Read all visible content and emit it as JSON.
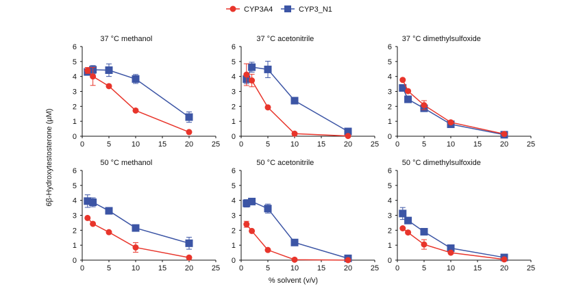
{
  "chart_data": {
    "type": "line",
    "layout": "2x3 small multiples",
    "shared_xlabel": "% solvent (v/v)",
    "shared_ylabel": "6β-Hydroxytestosterone (µM)",
    "legend": {
      "placement": "top-center",
      "entries": [
        {
          "name": "CYP3A4",
          "marker": "circle",
          "color": "#e8352b"
        },
        {
          "name": "CYP3_N1",
          "marker": "square",
          "color": "#3c55a5"
        }
      ]
    },
    "xlim": [
      0,
      25
    ],
    "ylim": [
      0,
      6
    ],
    "xticks": [
      0,
      5,
      10,
      15,
      20,
      25
    ],
    "yticks": [
      0,
      1,
      2,
      3,
      4,
      5,
      6
    ],
    "x": [
      1,
      2,
      5,
      10,
      20
    ],
    "panels": [
      {
        "title": "37 °C methanol",
        "series": [
          {
            "name": "CYP3A4",
            "values": [
              4.4,
              4.0,
              3.35,
              1.72,
              0.28
            ],
            "errors": [
              0.2,
              0.6,
              0.05,
              0.05,
              0.05
            ]
          },
          {
            "name": "CYP3_N1",
            "values": [
              4.3,
              4.45,
              4.42,
              3.83,
              1.28
            ],
            "errors": [
              0.2,
              0.28,
              0.42,
              0.3,
              0.35
            ]
          }
        ]
      },
      {
        "title": "37 °C acetonitrile",
        "series": [
          {
            "name": "CYP3A4",
            "values": [
              4.12,
              3.73,
              1.93,
              0.17,
              0.02
            ],
            "errors": [
              0.73,
              0.42,
              0.05,
              0.05,
              0.02
            ]
          },
          {
            "name": "CYP3_N1",
            "values": [
              3.82,
              4.62,
              4.47,
              2.38,
              0.32
            ],
            "errors": [
              0.3,
              0.33,
              0.55,
              0.05,
              0.1
            ]
          }
        ]
      },
      {
        "title": "37 °C dimethylsulfoxide",
        "series": [
          {
            "name": "CYP3A4",
            "values": [
              3.77,
              3.02,
              2.08,
              0.93,
              0.15
            ],
            "errors": [
              0.05,
              0.05,
              0.3,
              0.05,
              0.05
            ]
          },
          {
            "name": "CYP3_N1",
            "values": [
              3.23,
              2.47,
              1.87,
              0.8,
              0.1
            ],
            "errors": [
              0.1,
              0.1,
              0.1,
              0.1,
              0.05
            ]
          }
        ]
      },
      {
        "title": "50 °C methanol",
        "series": [
          {
            "name": "CYP3A4",
            "values": [
              2.82,
              2.43,
              1.87,
              0.85,
              0.17
            ],
            "errors": [
              0.05,
              0.05,
              0.05,
              0.32,
              0.05
            ]
          },
          {
            "name": "CYP3_N1",
            "values": [
              3.95,
              3.87,
              3.3,
              2.15,
              1.13
            ],
            "errors": [
              0.42,
              0.3,
              0.1,
              0.1,
              0.4
            ]
          }
        ]
      },
      {
        "title": "50 °C acetonitrile",
        "series": [
          {
            "name": "CYP3A4",
            "values": [
              2.4,
              1.95,
              0.68,
              0.03,
              0.0
            ],
            "errors": [
              0.2,
              0.05,
              0.05,
              0.03,
              0.02
            ]
          },
          {
            "name": "CYP3_N1",
            "values": [
              3.8,
              3.92,
              3.45,
              1.18,
              0.12
            ],
            "errors": [
              0.25,
              0.1,
              0.3,
              0.05,
              0.05
            ]
          }
        ]
      },
      {
        "title": "50 °C dimethylsulfoxide",
        "series": [
          {
            "name": "CYP3A4",
            "values": [
              2.13,
              1.85,
              1.05,
              0.5,
              0.05
            ],
            "errors": [
              0.05,
              0.05,
              0.32,
              0.05,
              0.03
            ]
          },
          {
            "name": "CYP3_N1",
            "values": [
              3.12,
              2.65,
              1.9,
              0.8,
              0.18
            ],
            "errors": [
              0.4,
              0.1,
              0.05,
              0.05,
              0.05
            ]
          }
        ]
      }
    ]
  }
}
